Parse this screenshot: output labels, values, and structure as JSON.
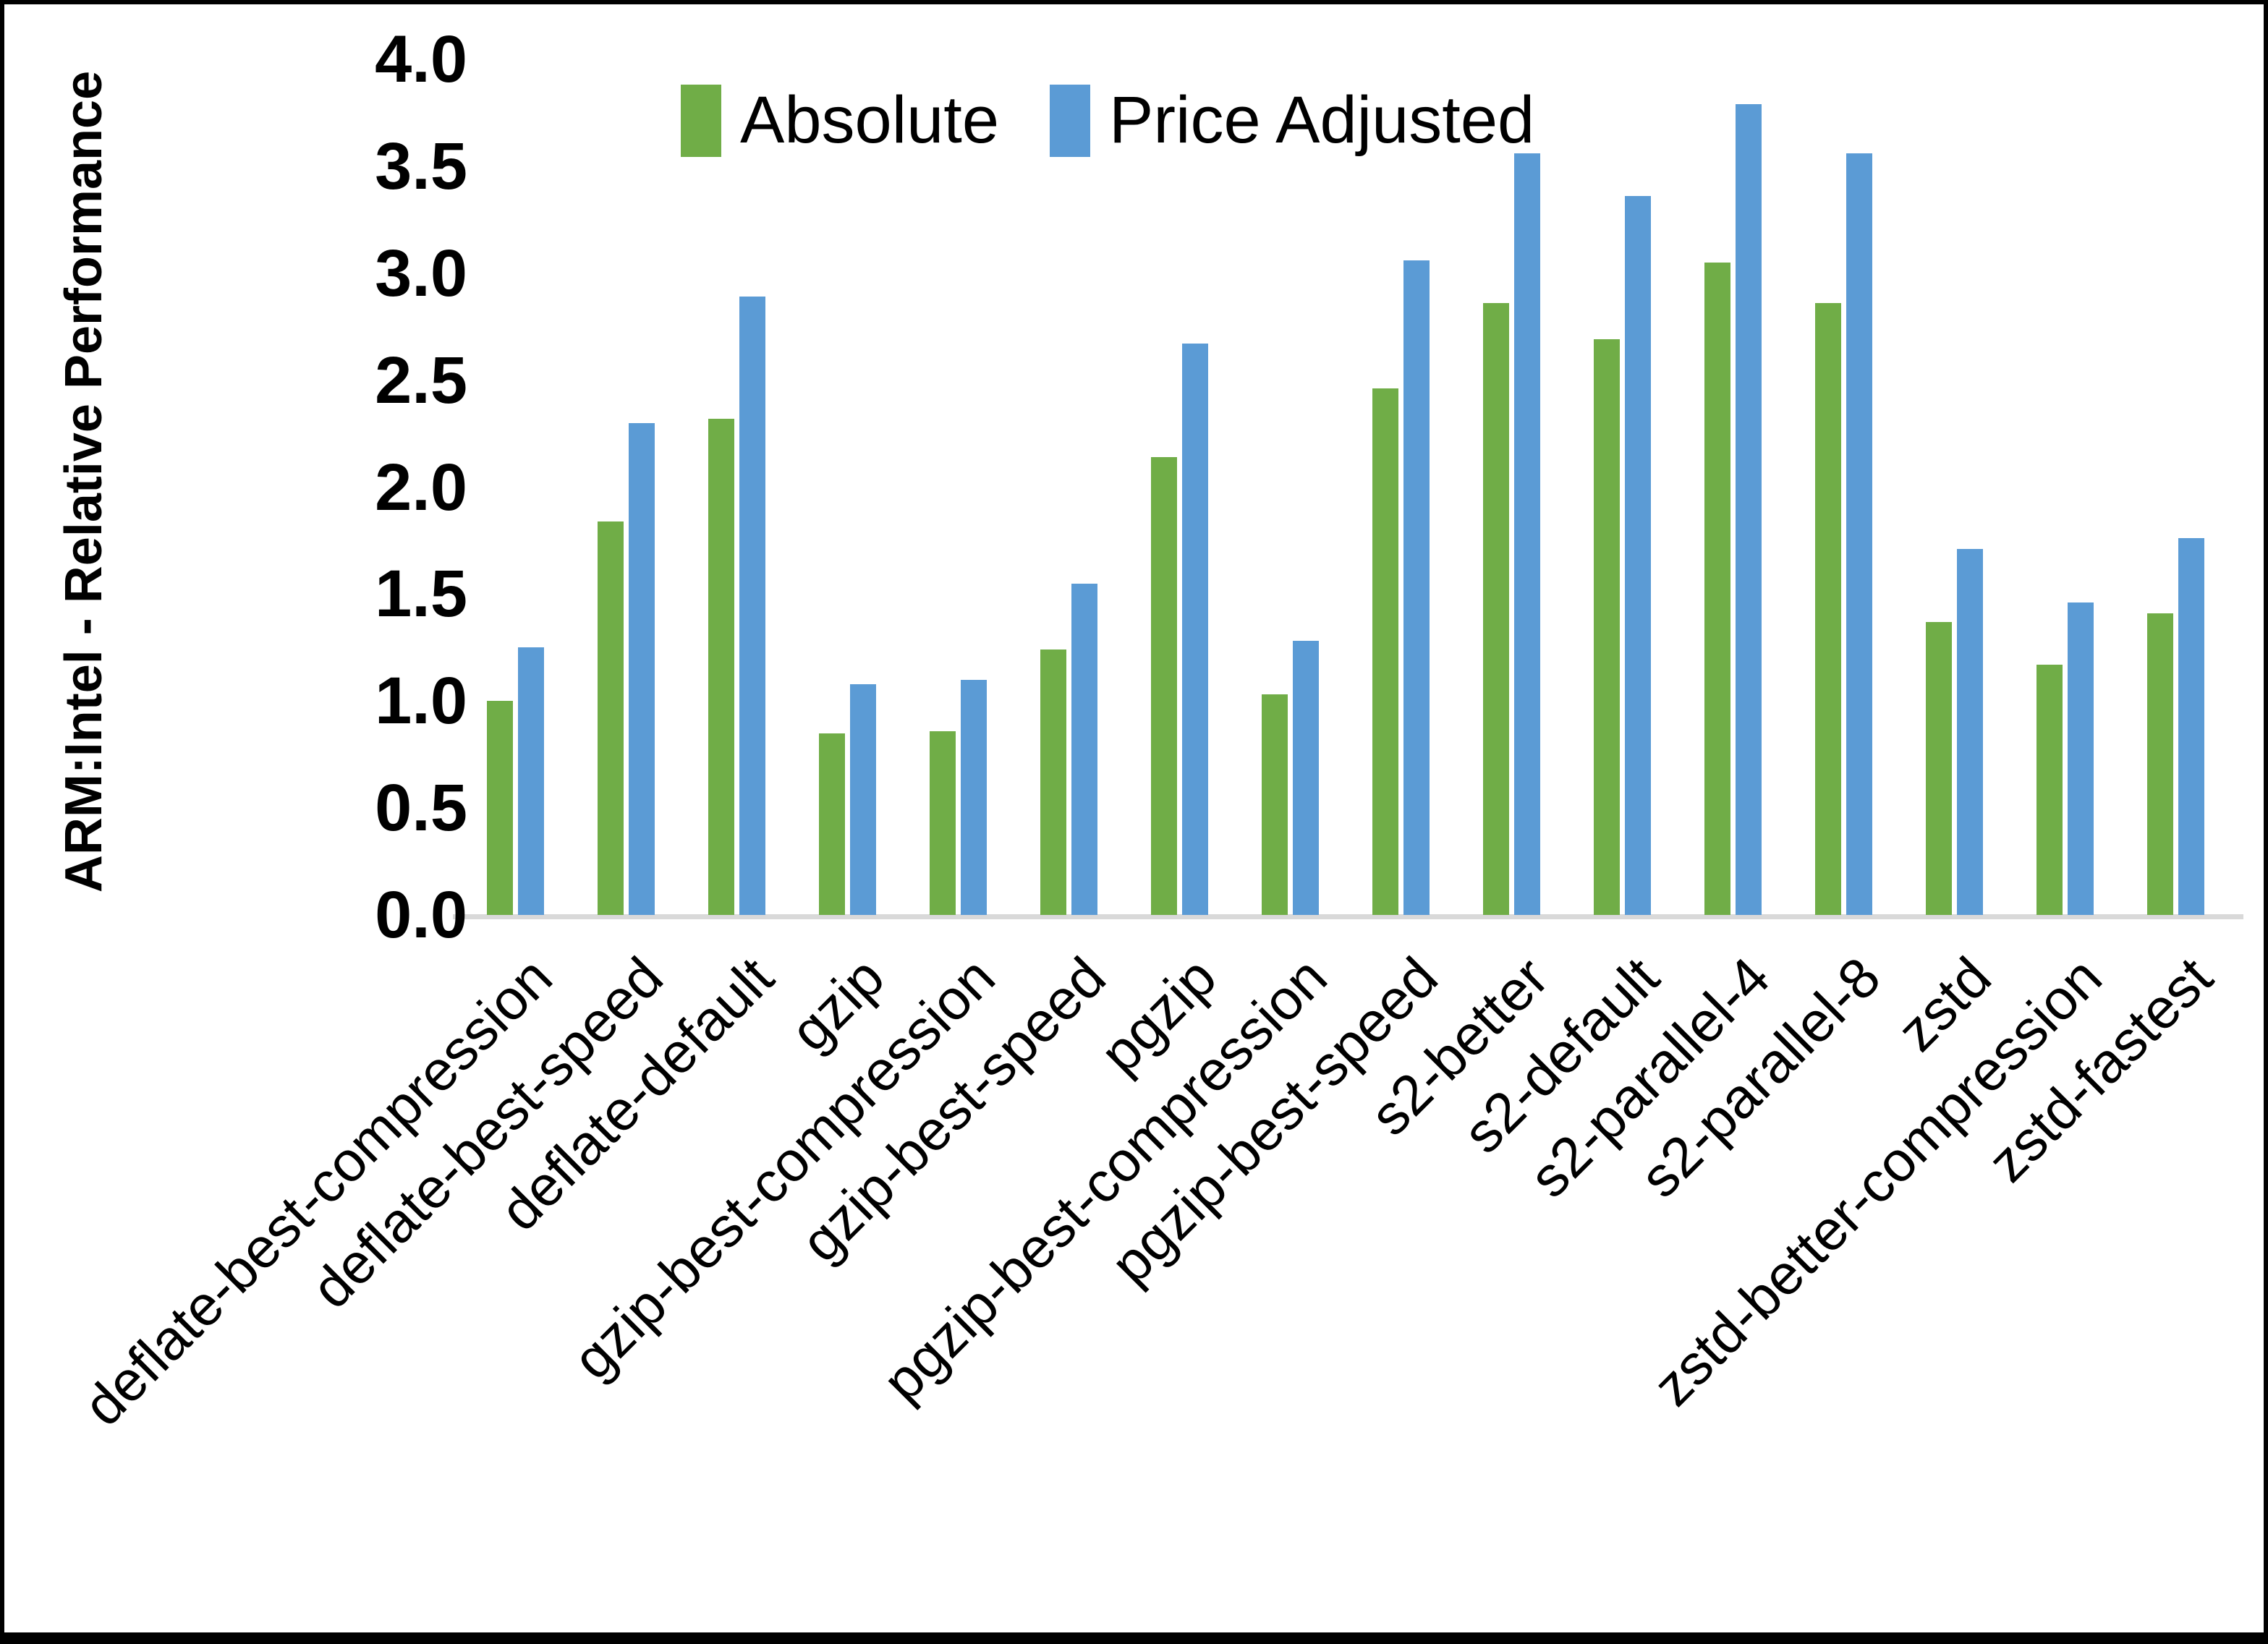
{
  "chart_data": {
    "type": "bar",
    "title": "",
    "ylabel": "ARM:Intel - Relative Performance",
    "xlabel": "",
    "ylim": [
      0.0,
      4.0
    ],
    "ytick_labels": [
      "0.0",
      "0.5",
      "1.0",
      "1.5",
      "2.0",
      "2.5",
      "3.0",
      "3.5",
      "4.0"
    ],
    "grid": "off",
    "legend_position": "top-center",
    "categories": [
      "deflate-best-compression",
      "deflate-best-speed",
      "deflate-default",
      "gzip",
      "gzip-best-compression",
      "gzip-best-speed",
      "pgzip",
      "pgzip-best-compression",
      "pgzip-best-speed",
      "s2-better",
      "s2-default",
      "s2-parallel-4",
      "s2-parallel-8",
      "zstd",
      "zstd-better-compression",
      "zstd-fastest"
    ],
    "series": [
      {
        "name": "Absolute",
        "color": "#70AD47",
        "values": [
          1.0,
          1.84,
          2.32,
          0.85,
          0.86,
          1.24,
          2.14,
          1.03,
          2.46,
          2.86,
          2.69,
          3.05,
          2.86,
          1.37,
          1.17,
          1.41
        ]
      },
      {
        "name": "Price Adjusted",
        "color": "#5B9BD5",
        "values": [
          1.25,
          2.3,
          2.89,
          1.08,
          1.1,
          1.55,
          2.67,
          1.28,
          3.06,
          3.56,
          3.36,
          3.79,
          3.56,
          1.71,
          1.46,
          1.76
        ]
      }
    ]
  }
}
